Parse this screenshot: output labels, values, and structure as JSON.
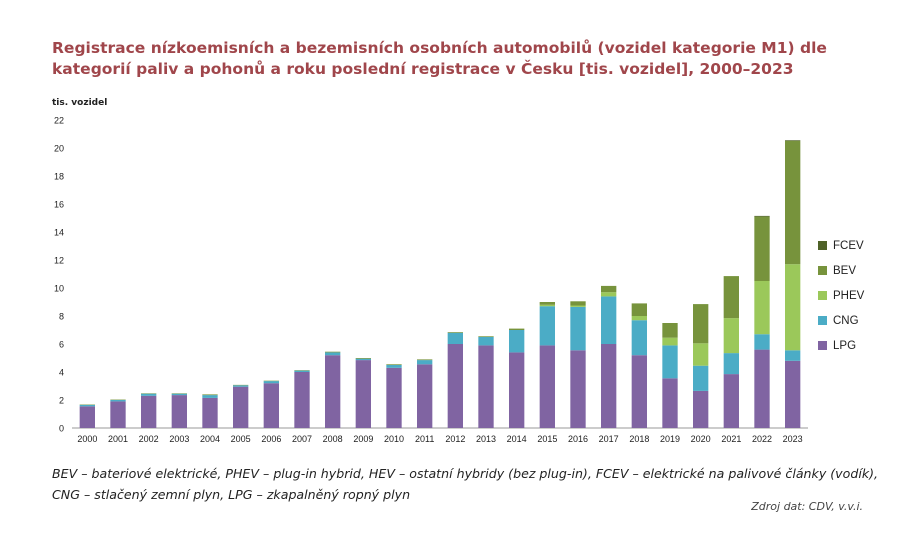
{
  "title": "Registrace nízkoemisních a bezemisních osobních automobilů (vozidel kategorie M1) dle kategorií paliv a pohonů a roku poslední registrace v Česku [tis. vozidel], 2000–2023",
  "note": "BEV – bateriové elektrické, PHEV – plug-in hybrid, HEV – ostatní hybridy (bez plug-in), FCEV – elektrické na palivové články (vodík), CNG – stlačený zemní plyn, LPG – zkapalněný ropný plyn",
  "source": "Zdroj dat: CDV, v.v.i.",
  "colors": {
    "title": "#a0464b",
    "axis": "#999999"
  },
  "chart_data": {
    "type": "bar",
    "stacked": true,
    "ylabel": "tis. vozidel",
    "ylim": [
      0,
      22
    ],
    "yticks": [
      0,
      2,
      4,
      6,
      8,
      10,
      12,
      14,
      16,
      18,
      20,
      22
    ],
    "grid": false,
    "legend_position": "right",
    "categories": [
      "2000",
      "2001",
      "2002",
      "2003",
      "2004",
      "2005",
      "2006",
      "2007",
      "2008",
      "2009",
      "2010",
      "2011",
      "2012",
      "2013",
      "2014",
      "2015",
      "2016",
      "2017",
      "2018",
      "2019",
      "2020",
      "2021",
      "2022",
      "2023"
    ],
    "series": [
      {
        "name": "LPG",
        "color": "#8064a2",
        "values": [
          1.55,
          1.9,
          2.3,
          2.35,
          2.15,
          2.95,
          3.2,
          4.0,
          5.2,
          4.85,
          4.3,
          4.55,
          6.0,
          5.9,
          5.4,
          5.9,
          5.55,
          6.0,
          5.2,
          3.55,
          2.65,
          3.85,
          5.6,
          4.8
        ]
      },
      {
        "name": "CNG",
        "color": "#4bacc6",
        "values": [
          0.1,
          0.1,
          0.15,
          0.1,
          0.2,
          0.1,
          0.15,
          0.1,
          0.2,
          0.1,
          0.2,
          0.3,
          0.8,
          0.6,
          1.6,
          2.8,
          3.1,
          3.4,
          2.5,
          2.35,
          1.8,
          1.5,
          1.1,
          0.75
        ]
      },
      {
        "name": "PHEV",
        "color": "#9bc85a",
        "values": [
          0,
          0,
          0,
          0,
          0,
          0,
          0,
          0,
          0,
          0,
          0,
          0,
          0,
          0,
          0,
          0.1,
          0.1,
          0.3,
          0.3,
          0.55,
          1.6,
          2.5,
          3.8,
          6.15
        ]
      },
      {
        "name": "BEV",
        "color": "#77933c",
        "values": [
          0.03,
          0.03,
          0.03,
          0.03,
          0.05,
          0.03,
          0.03,
          0.03,
          0.05,
          0.05,
          0.05,
          0.05,
          0.05,
          0.05,
          0.1,
          0.2,
          0.3,
          0.45,
          0.9,
          1.05,
          2.8,
          3.0,
          4.6,
          8.8
        ]
      },
      {
        "name": "FCEV",
        "color": "#4f6228",
        "values": [
          0,
          0,
          0,
          0,
          0,
          0,
          0,
          0,
          0,
          0,
          0,
          0,
          0,
          0,
          0,
          0,
          0,
          0,
          0,
          0,
          0,
          0,
          0.05,
          0.05
        ]
      }
    ]
  }
}
